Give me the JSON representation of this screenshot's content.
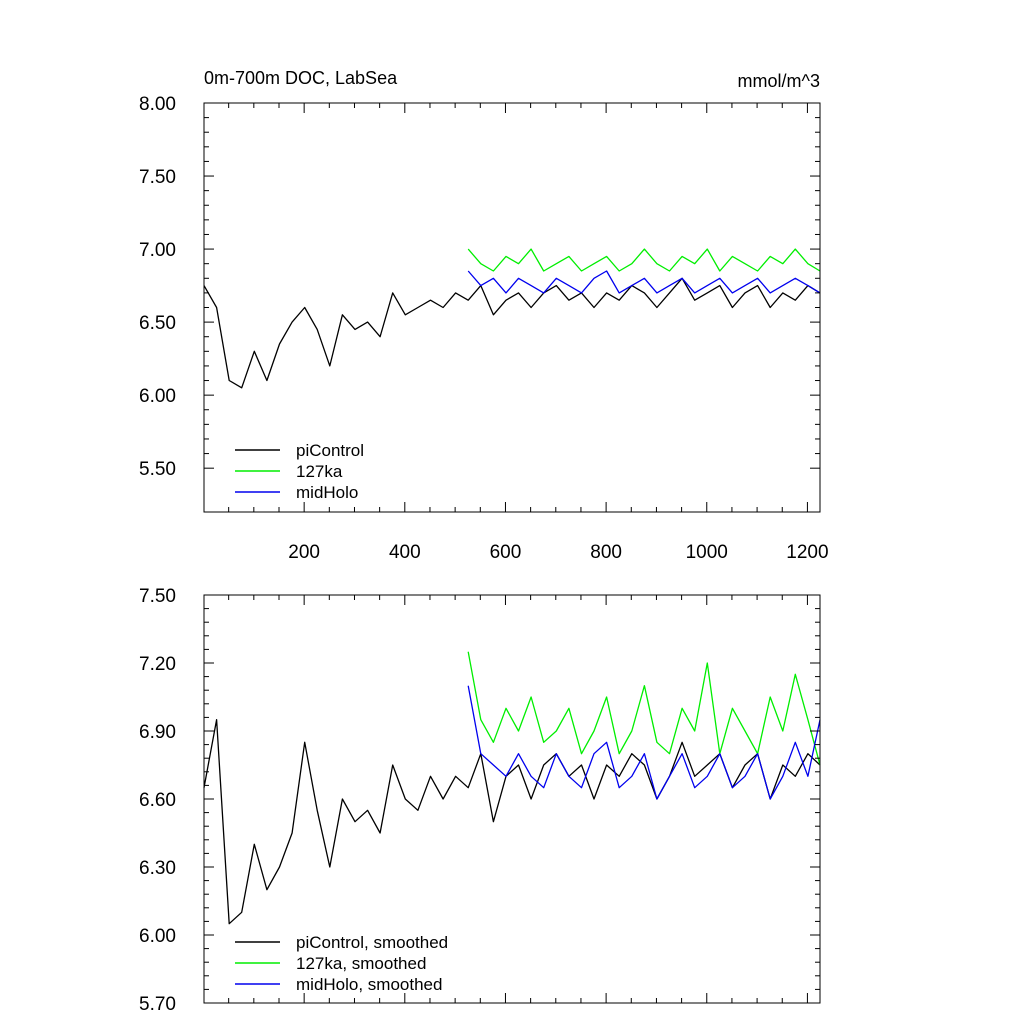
{
  "chart_data": [
    {
      "type": "line",
      "title_left": "0m-700m DOC, LabSea",
      "title_right": "mmol/m^3",
      "xlim": [
        1,
        1225
      ],
      "ylim": [
        5.2,
        8.0
      ],
      "yticks": [
        8.0,
        7.5,
        7.0,
        6.5,
        6.0,
        5.5
      ],
      "ytick_labels": [
        "8.00",
        "7.50",
        "7.00",
        "6.50",
        "6.00",
        "5.50"
      ],
      "xticks": [
        200,
        400,
        600,
        800,
        1000,
        1200
      ],
      "xtick_labels": [
        "200",
        "400",
        "600",
        "800",
        "1000",
        "1200"
      ],
      "legend": {
        "placement": "bottom-left",
        "entries": [
          "piControl",
          "127ka",
          "midHolo"
        ]
      },
      "series": [
        {
          "name": "piControl",
          "color": "#000000",
          "x": [
            1,
            26,
            51,
            76,
            101,
            126,
            151,
            176,
            201,
            226,
            251,
            276,
            301,
            326,
            351,
            376,
            401,
            426,
            451,
            476,
            501,
            526,
            551,
            576,
            601,
            626,
            651,
            676,
            701,
            726,
            751,
            776,
            801,
            826,
            851,
            876,
            901,
            926,
            951,
            976,
            1001,
            1026,
            1051,
            1076,
            1101,
            1126,
            1151,
            1176,
            1201,
            1225
          ],
          "values": [
            6.75,
            6.6,
            6.1,
            6.05,
            6.3,
            6.1,
            6.35,
            6.5,
            6.6,
            6.45,
            6.2,
            6.55,
            6.45,
            6.5,
            6.4,
            6.7,
            6.55,
            6.6,
            6.65,
            6.6,
            6.7,
            6.65,
            6.75,
            6.55,
            6.65,
            6.7,
            6.6,
            6.7,
            6.75,
            6.65,
            6.7,
            6.6,
            6.7,
            6.65,
            6.75,
            6.7,
            6.6,
            6.7,
            6.8,
            6.65,
            6.7,
            6.75,
            6.6,
            6.7,
            6.75,
            6.6,
            6.7,
            6.65,
            6.75,
            6.7
          ]
        },
        {
          "name": "127ka",
          "color": "#00ee00",
          "x": [
            526,
            551,
            576,
            601,
            626,
            651,
            676,
            701,
            726,
            751,
            776,
            801,
            826,
            851,
            876,
            901,
            926,
            951,
            976,
            1001,
            1026,
            1051,
            1076,
            1101,
            1126,
            1151,
            1176,
            1201,
            1225
          ],
          "values": [
            7.0,
            6.9,
            6.85,
            6.95,
            6.9,
            7.0,
            6.85,
            6.9,
            6.95,
            6.85,
            6.9,
            6.95,
            6.85,
            6.9,
            7.0,
            6.9,
            6.85,
            6.95,
            6.9,
            7.0,
            6.85,
            6.95,
            6.9,
            6.85,
            6.95,
            6.9,
            7.0,
            6.9,
            6.85
          ]
        },
        {
          "name": "midHolo",
          "color": "#0000ee",
          "x": [
            526,
            551,
            576,
            601,
            626,
            651,
            676,
            701,
            726,
            751,
            776,
            801,
            826,
            851,
            876,
            901,
            926,
            951,
            976,
            1001,
            1026,
            1051,
            1076,
            1101,
            1126,
            1151,
            1176,
            1201,
            1225
          ],
          "values": [
            6.85,
            6.75,
            6.8,
            6.7,
            6.8,
            6.75,
            6.7,
            6.8,
            6.75,
            6.7,
            6.8,
            6.85,
            6.7,
            6.75,
            6.8,
            6.7,
            6.75,
            6.8,
            6.7,
            6.75,
            6.8,
            6.7,
            6.75,
            6.8,
            6.7,
            6.75,
            6.8,
            6.75,
            6.7
          ]
        }
      ]
    },
    {
      "type": "line",
      "xlim": [
        1,
        1225
      ],
      "ylim": [
        5.7,
        7.5
      ],
      "yticks": [
        7.5,
        7.2,
        6.9,
        6.6,
        6.3,
        6.0,
        5.7
      ],
      "ytick_labels": [
        "7.50",
        "7.20",
        "6.90",
        "6.60",
        "6.30",
        "6.00",
        "5.70"
      ],
      "xticks": [
        200,
        400,
        600,
        800,
        1000,
        1200
      ],
      "legend": {
        "placement": "bottom-left",
        "entries": [
          "piControl, smoothed",
          "127ka, smoothed",
          "midHolo, smoothed"
        ]
      },
      "series": [
        {
          "name": "piControl, smoothed",
          "color": "#000000",
          "x": [
            1,
            26,
            51,
            76,
            101,
            126,
            151,
            176,
            201,
            226,
            251,
            276,
            301,
            326,
            351,
            376,
            401,
            426,
            451,
            476,
            501,
            526,
            551,
            576,
            601,
            626,
            651,
            676,
            701,
            726,
            751,
            776,
            801,
            826,
            851,
            876,
            901,
            926,
            951,
            976,
            1001,
            1026,
            1051,
            1076,
            1101,
            1126,
            1151,
            1176,
            1201,
            1225
          ],
          "values": [
            6.65,
            6.95,
            6.05,
            6.1,
            6.4,
            6.2,
            6.3,
            6.45,
            6.85,
            6.55,
            6.3,
            6.6,
            6.5,
            6.55,
            6.45,
            6.75,
            6.6,
            6.55,
            6.7,
            6.6,
            6.7,
            6.65,
            6.8,
            6.5,
            6.7,
            6.75,
            6.6,
            6.75,
            6.8,
            6.7,
            6.75,
            6.6,
            6.75,
            6.7,
            6.8,
            6.75,
            6.6,
            6.7,
            6.85,
            6.7,
            6.75,
            6.8,
            6.65,
            6.75,
            6.8,
            6.6,
            6.75,
            6.7,
            6.8,
            6.75
          ]
        },
        {
          "name": "127ka, smoothed",
          "color": "#00ee00",
          "x": [
            526,
            551,
            576,
            601,
            626,
            651,
            676,
            701,
            726,
            751,
            776,
            801,
            826,
            851,
            876,
            901,
            926,
            951,
            976,
            1001,
            1026,
            1051,
            1076,
            1101,
            1126,
            1151,
            1176,
            1201,
            1225
          ],
          "values": [
            7.25,
            6.95,
            6.85,
            7.0,
            6.9,
            7.05,
            6.85,
            6.9,
            7.0,
            6.8,
            6.9,
            7.05,
            6.8,
            6.9,
            7.1,
            6.85,
            6.8,
            7.0,
            6.9,
            7.2,
            6.8,
            7.0,
            6.9,
            6.8,
            7.05,
            6.9,
            7.15,
            6.95,
            6.75
          ]
        },
        {
          "name": "midHolo, smoothed",
          "color": "#0000ee",
          "x": [
            526,
            551,
            576,
            601,
            626,
            651,
            676,
            701,
            726,
            751,
            776,
            801,
            826,
            851,
            876,
            901,
            926,
            951,
            976,
            1001,
            1026,
            1051,
            1076,
            1101,
            1126,
            1151,
            1176,
            1201,
            1225
          ],
          "values": [
            7.1,
            6.8,
            6.75,
            6.7,
            6.8,
            6.7,
            6.65,
            6.8,
            6.7,
            6.65,
            6.8,
            6.85,
            6.65,
            6.7,
            6.8,
            6.6,
            6.7,
            6.8,
            6.65,
            6.7,
            6.8,
            6.65,
            6.7,
            6.8,
            6.6,
            6.7,
            6.85,
            6.7,
            6.95
          ]
        }
      ]
    }
  ]
}
